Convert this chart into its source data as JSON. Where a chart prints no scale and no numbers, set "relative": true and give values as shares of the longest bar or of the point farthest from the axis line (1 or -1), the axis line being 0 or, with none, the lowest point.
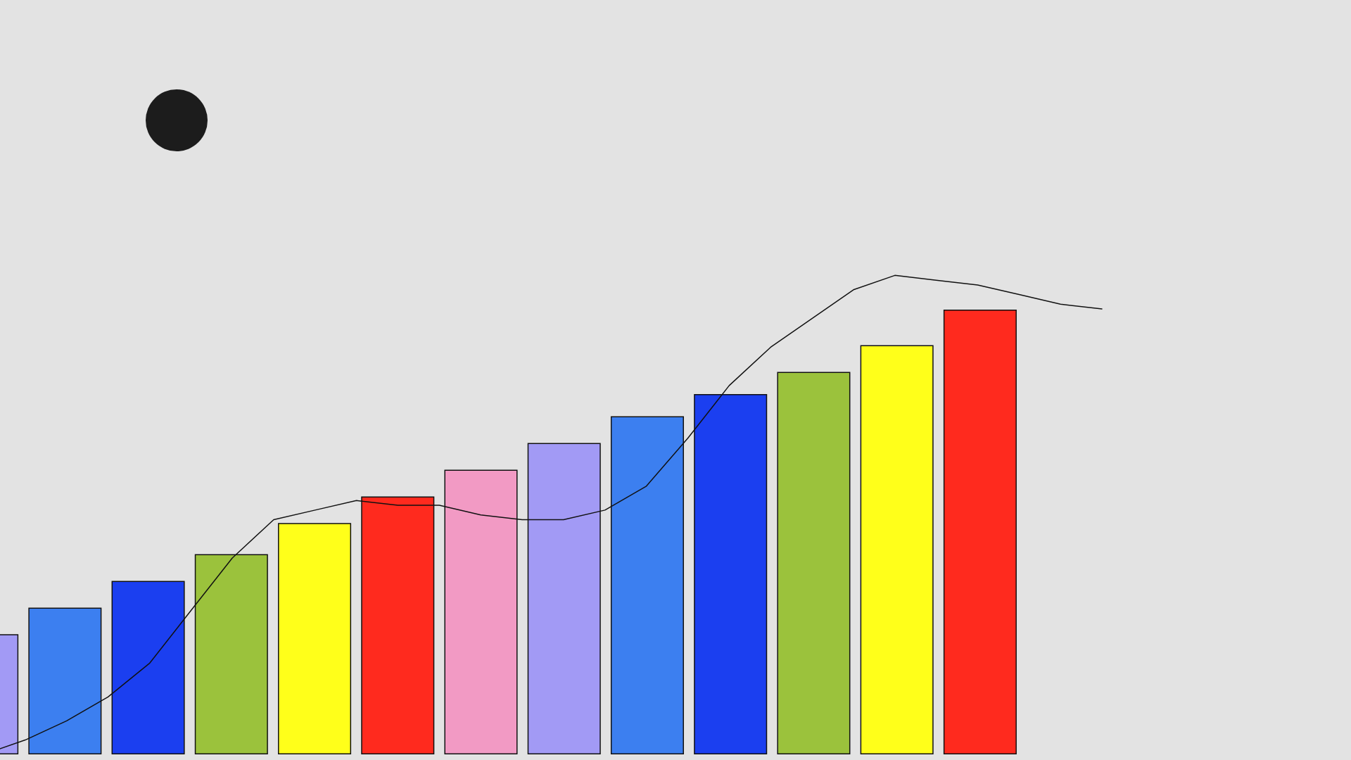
{
  "chart_data": [
    {
      "type": "bar",
      "relative": true,
      "grid": false,
      "categories": [
        null,
        null,
        null,
        null,
        null,
        null,
        null,
        null,
        null,
        null,
        null,
        null,
        null
      ],
      "values": [
        0.27,
        0.33,
        0.39,
        0.45,
        0.52,
        0.58,
        0.64,
        0.7,
        0.76,
        0.81,
        0.86,
        0.92,
        1
      ],
      "colors": [
        "#a29af5",
        "#3c7ff0",
        "#1b3ff0",
        "#9bc23c",
        "#ffff1a",
        "#ff2a1e",
        "#f29ac4",
        "#a29af5",
        "#3c7ff0",
        "#1b3ff0",
        "#9bc23c",
        "#ffff1a",
        "#ff2a1e"
      ]
    },
    {
      "type": "line",
      "relative": true,
      "grid": false,
      "marker": "none",
      "line_style": "solid",
      "color": "#111111",
      "categories": [
        null,
        null,
        null,
        null,
        null,
        null,
        null,
        null,
        null,
        null,
        null,
        null,
        null,
        null,
        null,
        null,
        null,
        null,
        null,
        null,
        null,
        null,
        null,
        null,
        null,
        null,
        null,
        null
      ],
      "values": [
        0,
        0.03,
        0.07,
        0.12,
        0.19,
        0.3,
        0.41,
        0.49,
        0.51,
        0.53,
        0.52,
        0.52,
        0.5,
        0.49,
        0.49,
        0.51,
        0.56,
        0.66,
        0.77,
        0.85,
        0.91,
        0.97,
        1,
        0.99,
        0.98,
        0.96,
        0.94,
        0.93
      ]
    }
  ]
}
